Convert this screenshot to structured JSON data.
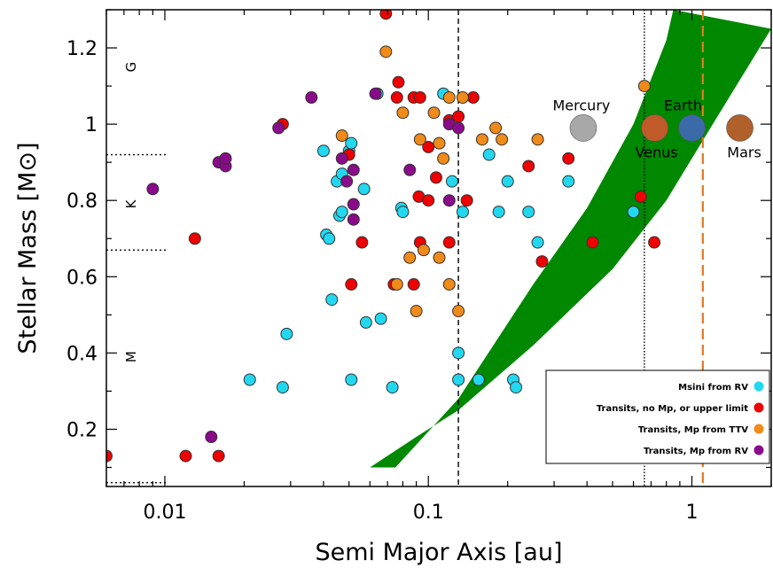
{
  "chart_data": {
    "type": "scatter",
    "xlabel": "Semi Major Axis [au]",
    "ylabel": "Stellar Mass [M⊙]",
    "x_scale": "log",
    "xlim": [
      0.006,
      2.0
    ],
    "ylim": [
      0.05,
      1.3
    ],
    "x_ticks": [
      {
        "value": 0.01,
        "label": "0.01"
      },
      {
        "value": 0.1,
        "label": "0.1"
      },
      {
        "value": 1,
        "label": "1"
      }
    ],
    "y_ticks": [
      {
        "value": 0.2,
        "label": "0.2"
      },
      {
        "value": 0.4,
        "label": "0.4"
      },
      {
        "value": 0.6,
        "label": "0.6"
      },
      {
        "value": 0.8,
        "label": "0.8"
      },
      {
        "value": 1.0,
        "label": "1"
      },
      {
        "value": 1.2,
        "label": "1.2"
      }
    ],
    "spectral_classes": [
      {
        "label": "G",
        "y": 1.15
      },
      {
        "label": "K",
        "y": 0.79
      },
      {
        "label": "M",
        "y": 0.39
      }
    ],
    "spectral_boundaries": [
      0.92,
      0.67,
      0.06
    ],
    "vertical_lines": [
      {
        "x": 0.13,
        "style": "dashed",
        "color": "#000000"
      },
      {
        "x": 0.66,
        "style": "dotted",
        "color": "#000000"
      },
      {
        "x": 1.1,
        "style": "dashed",
        "color": "#e07820"
      }
    ],
    "habitable_zone": {
      "color": "#008800",
      "inner": [
        [
          0.024,
          0.1
        ],
        [
          0.075,
          0.1
        ],
        [
          0.13,
          0.28
        ],
        [
          0.25,
          0.58
        ],
        [
          0.4,
          0.78
        ],
        [
          0.6,
          1.0
        ],
        [
          0.8,
          1.22
        ],
        [
          0.85,
          1.3
        ]
      ],
      "outer": [
        [
          0.024,
          0.1
        ],
        [
          0.06,
          0.1
        ],
        [
          0.09,
          0.18
        ],
        [
          0.13,
          0.25
        ],
        [
          0.25,
          0.42
        ],
        [
          0.5,
          0.62
        ],
        [
          0.8,
          0.8
        ],
        [
          1.2,
          1.0
        ],
        [
          2.0,
          1.25
        ]
      ]
    },
    "planets": [
      {
        "name": "Mercury",
        "x": 0.387,
        "y": 0.99,
        "color": "#a8a8a8"
      },
      {
        "name": "Venus",
        "x": 0.723,
        "y": 0.99,
        "color": "#c05a28"
      },
      {
        "name": "Earth",
        "x": 1.0,
        "y": 0.99,
        "color": "#3a6aa8"
      },
      {
        "name": "Mars",
        "x": 1.52,
        "y": 0.99,
        "color": "#b0602a"
      }
    ],
    "legend_position": "bottom-right",
    "series": [
      {
        "name": "Msini from RV",
        "color": "#22d8f0",
        "points": [
          [
            0.021,
            0.33
          ],
          [
            0.028,
            0.31
          ],
          [
            0.029,
            0.45
          ],
          [
            0.04,
            0.93
          ],
          [
            0.041,
            0.71
          ],
          [
            0.042,
            0.7
          ],
          [
            0.043,
            0.54
          ],
          [
            0.045,
            0.85
          ],
          [
            0.046,
            0.76
          ],
          [
            0.047,
            0.87
          ],
          [
            0.047,
            0.77
          ],
          [
            0.05,
            0.93
          ],
          [
            0.051,
            0.95
          ],
          [
            0.051,
            0.33
          ],
          [
            0.057,
            0.83
          ],
          [
            0.058,
            0.48
          ],
          [
            0.066,
            0.49
          ],
          [
            0.064,
            1.08
          ],
          [
            0.073,
            0.31
          ],
          [
            0.079,
            0.78
          ],
          [
            0.08,
            0.77
          ],
          [
            0.114,
            1.08
          ],
          [
            0.123,
            0.85
          ],
          [
            0.13,
            0.4
          ],
          [
            0.13,
            0.33
          ],
          [
            0.135,
            0.77
          ],
          [
            0.155,
            0.33
          ],
          [
            0.17,
            0.92
          ],
          [
            0.185,
            0.77
          ],
          [
            0.2,
            0.85
          ],
          [
            0.21,
            0.33
          ],
          [
            0.215,
            0.31
          ],
          [
            0.24,
            0.77
          ],
          [
            0.26,
            0.69
          ],
          [
            0.34,
            0.85
          ],
          [
            0.6,
            0.77
          ]
        ]
      },
      {
        "name": "Transits, no Mp, or upper limit",
        "color": "#ee0000",
        "points": [
          [
            0.006,
            0.13
          ],
          [
            0.012,
            0.13
          ],
          [
            0.013,
            0.7
          ],
          [
            0.016,
            0.13
          ],
          [
            0.028,
            1.0
          ],
          [
            0.05,
            0.92
          ],
          [
            0.051,
            0.58
          ],
          [
            0.056,
            0.69
          ],
          [
            0.069,
            1.29
          ],
          [
            0.077,
            1.11
          ],
          [
            0.076,
            1.07
          ],
          [
            0.074,
            0.58
          ],
          [
            0.088,
            1.07
          ],
          [
            0.088,
            0.58
          ],
          [
            0.093,
            1.07
          ],
          [
            0.092,
            0.81
          ],
          [
            0.093,
            0.69
          ],
          [
            0.1,
            0.8
          ],
          [
            0.1,
            0.94
          ],
          [
            0.107,
            0.86
          ],
          [
            0.12,
            1.01
          ],
          [
            0.12,
            0.69
          ],
          [
            0.13,
            1.02
          ],
          [
            0.14,
            0.8
          ],
          [
            0.148,
            1.07
          ],
          [
            0.24,
            0.89
          ],
          [
            0.27,
            0.64
          ],
          [
            0.34,
            0.91
          ],
          [
            0.42,
            0.69
          ],
          [
            0.64,
            0.81
          ],
          [
            0.72,
            0.69
          ]
        ]
      },
      {
        "name": "Transits, Mp from TTV",
        "color": "#f08a18",
        "points": [
          [
            0.047,
            0.97
          ],
          [
            0.069,
            1.19
          ],
          [
            0.076,
            0.58
          ],
          [
            0.08,
            1.03
          ],
          [
            0.085,
            0.65
          ],
          [
            0.09,
            0.51
          ],
          [
            0.093,
            0.96
          ],
          [
            0.096,
            0.67
          ],
          [
            0.105,
            1.03
          ],
          [
            0.11,
            0.95
          ],
          [
            0.11,
            0.65
          ],
          [
            0.114,
            0.91
          ],
          [
            0.12,
            0.58
          ],
          [
            0.12,
            1.07
          ],
          [
            0.13,
            0.51
          ],
          [
            0.135,
            1.07
          ],
          [
            0.16,
            0.96
          ],
          [
            0.18,
            0.99
          ],
          [
            0.19,
            0.96
          ],
          [
            0.26,
            0.96
          ],
          [
            0.66,
            1.1
          ]
        ]
      },
      {
        "name": "Transits, Mp from RV",
        "color": "#8a0a8a",
        "points": [
          [
            0.009,
            0.83
          ],
          [
            0.015,
            0.18
          ],
          [
            0.016,
            0.9
          ],
          [
            0.017,
            0.89
          ],
          [
            0.017,
            0.91
          ],
          [
            0.027,
            0.99
          ],
          [
            0.036,
            1.07
          ],
          [
            0.047,
            0.91
          ],
          [
            0.049,
            0.85
          ],
          [
            0.052,
            0.75
          ],
          [
            0.052,
            0.79
          ],
          [
            0.052,
            0.88
          ],
          [
            0.063,
            1.08
          ],
          [
            0.085,
            0.88
          ],
          [
            0.12,
            1.0
          ],
          [
            0.12,
            0.8
          ],
          [
            0.13,
            0.99
          ]
        ]
      }
    ]
  }
}
